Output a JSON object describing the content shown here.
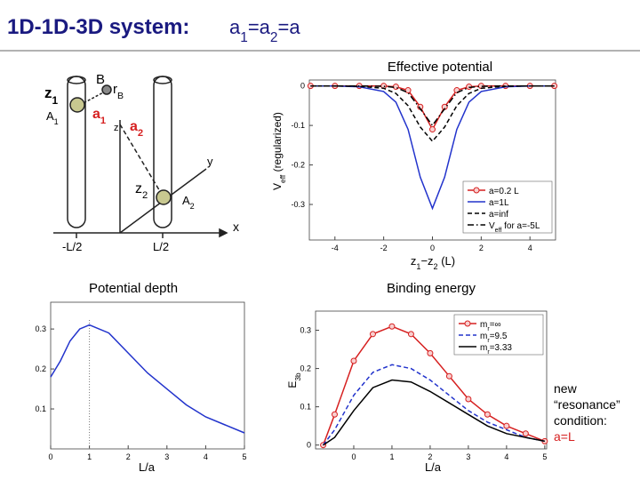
{
  "header": {
    "title": "1D-1D-3D system:",
    "formula": [
      "a",
      {
        "sub": "1"
      },
      "=a",
      {
        "sub": "2"
      },
      "=a"
    ]
  },
  "diagram": {
    "labels": [
      [
        "z",
        {
          "sub": "1"
        }
      ],
      [
        "A",
        {
          "sub": "1"
        }
      ],
      [
        "B"
      ],
      [
        "r",
        {
          "sub": "B"
        }
      ],
      [
        "a",
        {
          "sub": "1"
        }
      ],
      [
        "z"
      ],
      [
        "a",
        {
          "sub": "2"
        }
      ],
      [
        "y"
      ],
      [
        "z",
        {
          "sub": "2"
        }
      ],
      [
        "A",
        {
          "sub": "2"
        }
      ],
      [
        "x"
      ],
      [
        "-L/2"
      ],
      [
        "L/2"
      ]
    ]
  },
  "chart_data": [
    {
      "type": "line",
      "title": "Effective potential",
      "xlabel": [
        "z",
        {
          "sub": "1"
        },
        "−z",
        {
          "sub": "2"
        },
        " (L)"
      ],
      "ylabel": [
        "V",
        {
          "sub": "eff"
        },
        " (regularized)"
      ],
      "x": [
        -5,
        -4,
        -3,
        -2,
        -1.5,
        -1,
        -0.5,
        0,
        0.5,
        1,
        1.5,
        2,
        3,
        4,
        5
      ],
      "xlim": [
        -5.05,
        5.05
      ],
      "ylim": [
        -0.39,
        0.015
      ],
      "xticks": [
        -4,
        -2,
        0,
        2,
        4
      ],
      "yticks": [
        -0.3,
        -0.2,
        -0.1,
        0
      ],
      "legend": "lower right",
      "series": [
        {
          "name": [
            "a=0.2 L"
          ],
          "color": "#d62020",
          "style": "solid",
          "marker": "circle",
          "values": [
            0,
            0,
            0,
            0,
            -0.002,
            -0.011,
            -0.053,
            -0.11,
            -0.053,
            -0.011,
            -0.002,
            0,
            0,
            0,
            0
          ]
        },
        {
          "name": [
            "a=1L"
          ],
          "color": "#2233cc",
          "style": "solid",
          "marker": "none",
          "values": [
            0,
            0,
            -0.002,
            -0.014,
            -0.041,
            -0.11,
            -0.231,
            -0.31,
            -0.231,
            -0.11,
            -0.041,
            -0.014,
            -0.002,
            0,
            0
          ]
        },
        {
          "name": [
            "a=inf"
          ],
          "color": "#000000",
          "style": "dashed",
          "marker": "none",
          "values": [
            0,
            0,
            -0.001,
            -0.006,
            -0.019,
            -0.05,
            -0.104,
            -0.14,
            -0.104,
            -0.05,
            -0.019,
            -0.006,
            -0.001,
            0,
            0
          ]
        },
        {
          "name": [
            "V",
            {
              "sub": "eff"
            },
            " for a=-5L"
          ],
          "color": "#000000",
          "style": "dashdot",
          "marker": "none",
          "values": [
            0,
            0,
            0,
            -0.001,
            -0.004,
            -0.017,
            -0.058,
            -0.1,
            -0.058,
            -0.017,
            -0.004,
            -0.001,
            0,
            0,
            0
          ]
        }
      ]
    },
    {
      "type": "line",
      "title": "Potential depth",
      "xlabel": [
        "L/a"
      ],
      "x": [
        0,
        0.25,
        0.5,
        0.75,
        1,
        1.5,
        2,
        2.5,
        3,
        3.5,
        4,
        4.5,
        5
      ],
      "xlim": [
        0,
        5
      ],
      "ylim": [
        0,
        0.367
      ],
      "xticks": [
        0,
        1,
        2,
        3,
        4,
        5
      ],
      "yticks": [
        0.1,
        0.2,
        0.3
      ],
      "vline": 1,
      "series": [
        {
          "color": "#2233cc",
          "style": "solid",
          "marker": "none",
          "values": [
            0.18,
            0.22,
            0.27,
            0.3,
            0.31,
            0.29,
            0.24,
            0.19,
            0.15,
            0.11,
            0.08,
            0.06,
            0.04
          ]
        }
      ]
    },
    {
      "type": "line",
      "title": "Binding energy",
      "xlabel": [
        "L/a"
      ],
      "ylabel": [
        "E",
        {
          "sub": "3b"
        }
      ],
      "x": [
        -0.8,
        -0.5,
        0,
        0.5,
        1,
        1.5,
        2,
        2.5,
        3,
        3.5,
        4,
        4.5,
        5
      ],
      "xlim": [
        -1,
        5.05
      ],
      "ylim": [
        -0.01,
        0.35
      ],
      "xticks": [
        0,
        1,
        2,
        3,
        4,
        5
      ],
      "yticks": [
        0,
        0.1,
        0.2,
        0.3
      ],
      "legend": "upper right",
      "series": [
        {
          "name": [
            "m",
            {
              "sub": "r"
            },
            "=∞"
          ],
          "color": "#d62020",
          "style": "solid",
          "marker": "circle",
          "values": [
            0,
            0.08,
            0.22,
            0.29,
            0.31,
            0.29,
            0.24,
            0.18,
            0.12,
            0.08,
            0.05,
            0.03,
            0.01
          ]
        },
        {
          "name": [
            "m",
            {
              "sub": "r"
            },
            "=9.5"
          ],
          "color": "#2233cc",
          "style": "dashed",
          "marker": "none",
          "values": [
            0,
            0.04,
            0.13,
            0.19,
            0.21,
            0.2,
            0.17,
            0.13,
            0.09,
            0.06,
            0.04,
            0.02,
            0.01
          ]
        },
        {
          "name": [
            "m",
            {
              "sub": "r"
            },
            "=3.33"
          ],
          "color": "#000000",
          "style": "solid",
          "marker": "none",
          "values": [
            0,
            0.02,
            0.09,
            0.15,
            0.17,
            0.165,
            0.14,
            0.11,
            0.08,
            0.05,
            0.03,
            0.02,
            0.01
          ]
        }
      ]
    }
  ],
  "note": {
    "lines": [
      "new",
      "“resonance”",
      "condition:"
    ],
    "highlight": "a=L"
  }
}
